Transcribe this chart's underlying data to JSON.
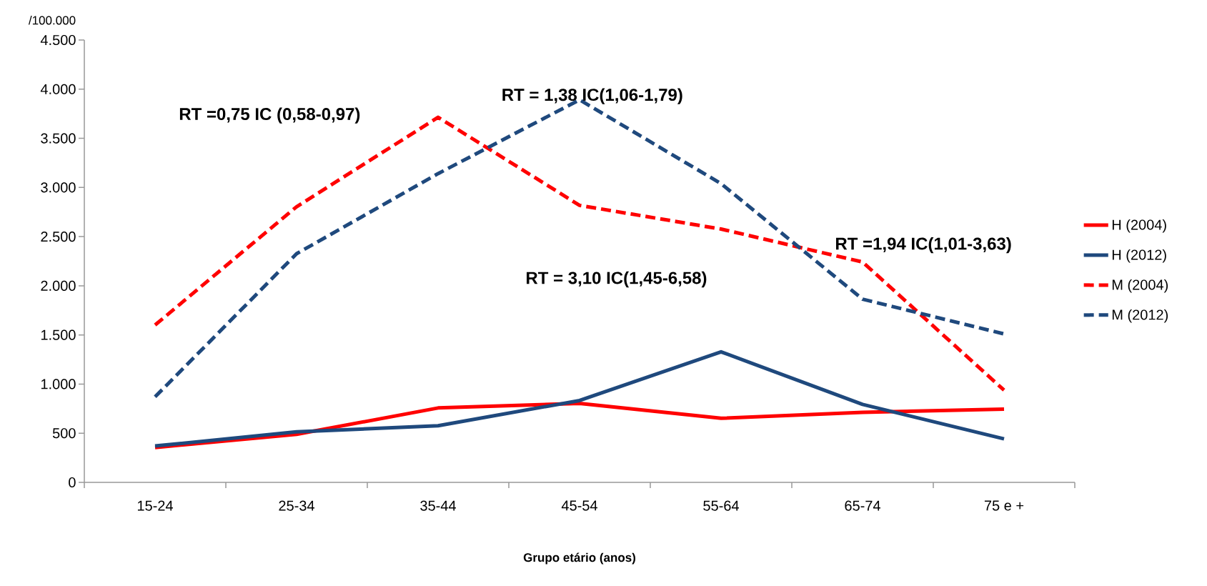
{
  "chart_data": {
    "type": "line",
    "xlabel": "Grupo etário (anos)",
    "ylabel": "/100.000",
    "categories": [
      "15-24",
      "25-34",
      "35-44",
      "45-54",
      "55-64",
      "65-74",
      "75 e +"
    ],
    "series": [
      {
        "name": "H (2004)",
        "color": "#ff0000",
        "line_style": "solid",
        "values": [
          355,
          489,
          757,
          804,
          652,
          712,
          746
        ]
      },
      {
        "name": "H (2012)",
        "color": "#1f497d",
        "line_style": "solid",
        "values": [
          370,
          514,
          576,
          833,
          1328,
          793,
          443
        ]
      },
      {
        "name": "M (2004)",
        "color": "#ff0000",
        "line_style": "dashed",
        "values": [
          1601,
          2804,
          3714,
          2818,
          2577,
          2242,
          938
        ]
      },
      {
        "name": "M (2012)",
        "color": "#1f497d",
        "line_style": "dashed",
        "values": [
          870,
          2326,
          3141,
          3892,
          3039,
          1864,
          1510
        ]
      }
    ],
    "ylim": [
      0,
      4500
    ],
    "yticks": [
      0,
      500,
      {
        "value": 1000,
        "label": "1.000"
      },
      {
        "value": 1500,
        "label": "1.500"
      },
      {
        "value": 2000,
        "label": "2.000"
      },
      {
        "value": 2500,
        "label": "2.500"
      },
      {
        "value": 3000,
        "label": "3.000"
      },
      {
        "value": 3500,
        "label": "3.500"
      },
      {
        "value": 4000,
        "label": "4.000"
      },
      {
        "value": 4500,
        "label": "4.500"
      }
    ],
    "annotations": [
      "RT =0,75  IC (0,58-0,97)",
      "RT = 1,38 IC(1,06-1,79)",
      "RT = 3,10 IC(1,45-6,58)",
      "RT =1,94 IC(1,01-3,63)"
    ],
    "legend": "right",
    "grid": false,
    "marker": "none"
  }
}
